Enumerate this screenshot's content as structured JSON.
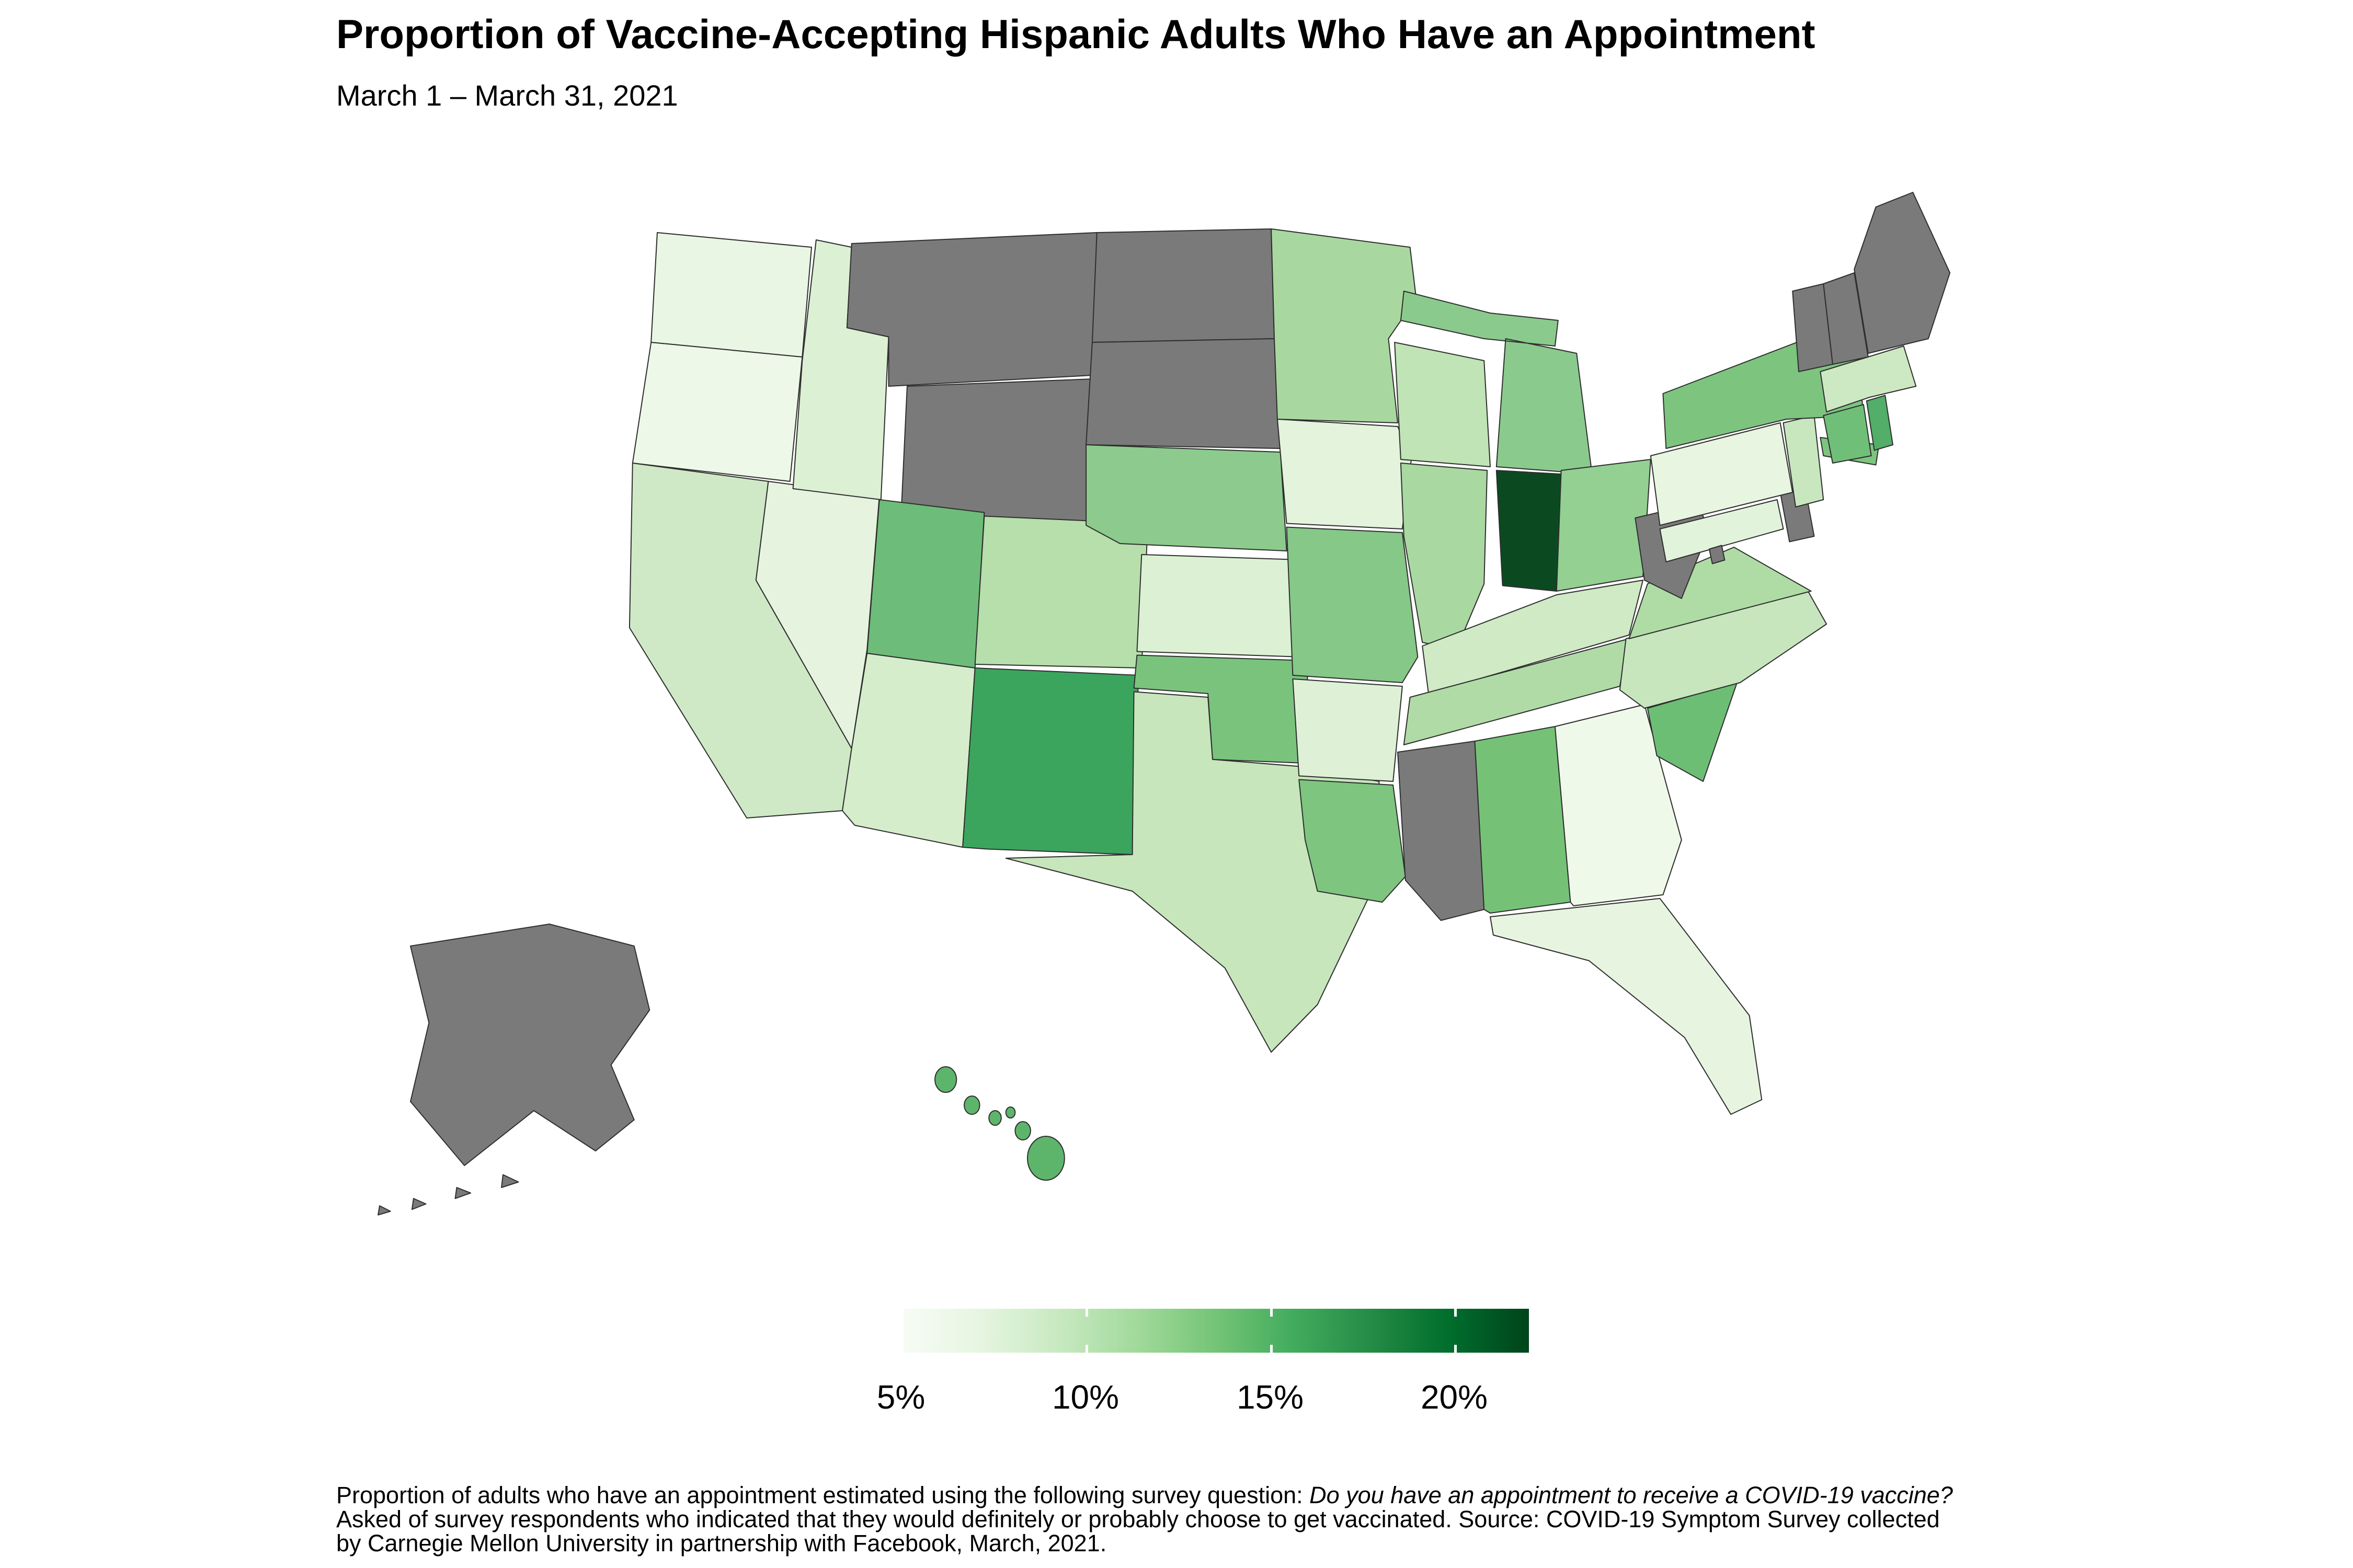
{
  "header": {
    "title": "Proportion of Vaccine-Accepting Hispanic Adults Who Have an Appointment",
    "subtitle": "March 1 – March 31, 2021"
  },
  "legend": {
    "tick_labels": [
      "5%",
      "10%",
      "15%",
      "20%"
    ],
    "tick_values_pct": [
      5,
      10,
      15,
      20
    ],
    "scale_domain_pct": [
      5,
      22
    ],
    "gradient_colors": [
      "#f7fcf5",
      "#e5f5e0",
      "#c7e9c0",
      "#a1d99b",
      "#74c476",
      "#41ab5d",
      "#238b45",
      "#006d2c",
      "#00441b"
    ],
    "missing_color": "#7a7a7a",
    "border_color": "#2e2e2e"
  },
  "footnote": {
    "line1_normal": "Proportion of adults who have an appointment estimated using the following survey question: ",
    "line1_italic": "Do you have an appointment to receive a COVID-19 vaccine?",
    "line2": "Asked of survey respondents who indicated that they would definitely or probably choose to get vaccinated. Source: COVID-19 Symptom Survey collected",
    "line3": "by Carnegie Mellon University in partnership with Facebook, March, 2021."
  },
  "chart_data": {
    "type": "heatmap",
    "subtype": "us-state-choropleth",
    "title": "Proportion of Vaccine-Accepting Hispanic Adults Who Have an Appointment",
    "subtitle": "March 1 – March 31, 2021",
    "unit": "percent of vaccine-accepting Hispanic adults with an appointment",
    "legend_position": "bottom",
    "scale_domain_pct": [
      5,
      22
    ],
    "missing_data_color": "#7a7a7a",
    "states": [
      {
        "abbr": "WA",
        "name": "Washington",
        "value_pct": 5,
        "color": "#e9f6e4",
        "missing": false
      },
      {
        "abbr": "OR",
        "name": "Oregon",
        "value_pct": 5,
        "color": "#edf8e8",
        "missing": false
      },
      {
        "abbr": "CA",
        "name": "California",
        "value_pct": 7,
        "color": "#cfe9c6",
        "missing": false
      },
      {
        "abbr": "NV",
        "name": "Nevada",
        "value_pct": 5.5,
        "color": "#e6f4df",
        "missing": false
      },
      {
        "abbr": "ID",
        "name": "Idaho",
        "value_pct": 6,
        "color": "#dcf0d4",
        "missing": false
      },
      {
        "abbr": "MT",
        "name": "Montana",
        "value_pct": null,
        "color": "#7a7a7a",
        "missing": true
      },
      {
        "abbr": "WY",
        "name": "Wyoming",
        "value_pct": null,
        "color": "#7a7a7a",
        "missing": true
      },
      {
        "abbr": "UT",
        "name": "Utah",
        "value_pct": 13,
        "color": "#6dbc79",
        "missing": false
      },
      {
        "abbr": "AZ",
        "name": "Arizona",
        "value_pct": 6.5,
        "color": "#d5edcb",
        "missing": false
      },
      {
        "abbr": "CO",
        "name": "Colorado",
        "value_pct": 9,
        "color": "#b6dfab",
        "missing": false
      },
      {
        "abbr": "NM",
        "name": "New Mexico",
        "value_pct": 15.5,
        "color": "#3ba55d",
        "missing": false
      },
      {
        "abbr": "ND",
        "name": "North Dakota",
        "value_pct": null,
        "color": "#7a7a7a",
        "missing": true
      },
      {
        "abbr": "SD",
        "name": "South Dakota",
        "value_pct": null,
        "color": "#7a7a7a",
        "missing": true
      },
      {
        "abbr": "NE",
        "name": "Nebraska",
        "value_pct": 11,
        "color": "#8ccb8d",
        "missing": false
      },
      {
        "abbr": "KS",
        "name": "Kansas",
        "value_pct": 6,
        "color": "#dcf1d4",
        "missing": false
      },
      {
        "abbr": "OK",
        "name": "Oklahoma",
        "value_pct": 12,
        "color": "#7ac37d",
        "missing": false
      },
      {
        "abbr": "TX",
        "name": "Texas",
        "value_pct": 8,
        "color": "#c7e6bc",
        "missing": false
      },
      {
        "abbr": "MN",
        "name": "Minnesota",
        "value_pct": 9.5,
        "color": "#a8d89f",
        "missing": false
      },
      {
        "abbr": "IA",
        "name": "Iowa",
        "value_pct": 5.5,
        "color": "#e3f3dc",
        "missing": false
      },
      {
        "abbr": "MO",
        "name": "Missouri",
        "value_pct": 11.5,
        "color": "#85c887",
        "missing": false
      },
      {
        "abbr": "AR",
        "name": "Arkansas",
        "value_pct": 6,
        "color": "#def1d6",
        "missing": false
      },
      {
        "abbr": "LA",
        "name": "Louisiana",
        "value_pct": 11.5,
        "color": "#7ec580",
        "missing": false
      },
      {
        "abbr": "WI",
        "name": "Wisconsin",
        "value_pct": 8,
        "color": "#c0e4b5",
        "missing": false
      },
      {
        "abbr": "IL",
        "name": "Illinois",
        "value_pct": 9.5,
        "color": "#a9d9a1",
        "missing": false
      },
      {
        "abbr": "MS",
        "name": "Mississippi",
        "value_pct": null,
        "color": "#7a7a7a",
        "missing": true
      },
      {
        "abbr": "MI",
        "name": "Michigan",
        "value_pct": 11,
        "color": "#8bca8d",
        "missing": false
      },
      {
        "abbr": "IN",
        "name": "Indiana",
        "value_pct": 21.5,
        "color": "#0b4a21",
        "missing": false
      },
      {
        "abbr": "OH",
        "name": "Ohio",
        "value_pct": 10.5,
        "color": "#93d092",
        "missing": false
      },
      {
        "abbr": "KY",
        "name": "Kentucky",
        "value_pct": 7,
        "color": "#cfeac5",
        "missing": false
      },
      {
        "abbr": "TN",
        "name": "Tennessee",
        "value_pct": 9,
        "color": "#b0dba6",
        "missing": false
      },
      {
        "abbr": "AL",
        "name": "Alabama",
        "value_pct": 12,
        "color": "#75c277",
        "missing": false
      },
      {
        "abbr": "GA",
        "name": "Georgia",
        "value_pct": 4.5,
        "color": "#eff9ea",
        "missing": false
      },
      {
        "abbr": "FL",
        "name": "Florida",
        "value_pct": 5,
        "color": "#e7f5e0",
        "missing": false
      },
      {
        "abbr": "SC",
        "name": "South Carolina",
        "value_pct": 12.5,
        "color": "#6dbe75",
        "missing": false
      },
      {
        "abbr": "NC",
        "name": "North Carolina",
        "value_pct": 7.5,
        "color": "#c7e6bd",
        "missing": false
      },
      {
        "abbr": "VA",
        "name": "Virginia",
        "value_pct": 9,
        "color": "#afdca5",
        "missing": false
      },
      {
        "abbr": "WV",
        "name": "West Virginia",
        "value_pct": null,
        "color": "#7a7a7a",
        "missing": true
      },
      {
        "abbr": "MD",
        "name": "Maryland",
        "value_pct": 5.5,
        "color": "#e2f3dc",
        "missing": false
      },
      {
        "abbr": "DE",
        "name": "Delaware",
        "value_pct": null,
        "color": "#7a7a7a",
        "missing": true
      },
      {
        "abbr": "DC",
        "name": "District of Columbia",
        "value_pct": null,
        "color": "#7a7a7a",
        "missing": true
      },
      {
        "abbr": "PA",
        "name": "Pennsylvania",
        "value_pct": 5,
        "color": "#e7f5e1",
        "missing": false
      },
      {
        "abbr": "NJ",
        "name": "New Jersey",
        "value_pct": 7.5,
        "color": "#c9e7bf",
        "missing": false
      },
      {
        "abbr": "NY",
        "name": "New York",
        "value_pct": 12,
        "color": "#7dc47f",
        "missing": false
      },
      {
        "abbr": "CT",
        "name": "Connecticut",
        "value_pct": 12,
        "color": "#70bf79",
        "missing": false
      },
      {
        "abbr": "RI",
        "name": "Rhode Island",
        "value_pct": 14,
        "color": "#52ae68",
        "missing": false
      },
      {
        "abbr": "MA",
        "name": "Massachusetts",
        "value_pct": 7,
        "color": "#cde9c3",
        "missing": false
      },
      {
        "abbr": "VT",
        "name": "Vermont",
        "value_pct": null,
        "color": "#7a7a7a",
        "missing": true
      },
      {
        "abbr": "NH",
        "name": "New Hampshire",
        "value_pct": null,
        "color": "#7a7a7a",
        "missing": true
      },
      {
        "abbr": "ME",
        "name": "Maine",
        "value_pct": null,
        "color": "#7a7a7a",
        "missing": true
      },
      {
        "abbr": "AK",
        "name": "Alaska",
        "value_pct": null,
        "color": "#7a7a7a",
        "missing": true
      },
      {
        "abbr": "HI",
        "name": "Hawaii",
        "value_pct": 13,
        "color": "#5db56c",
        "missing": false
      }
    ]
  }
}
